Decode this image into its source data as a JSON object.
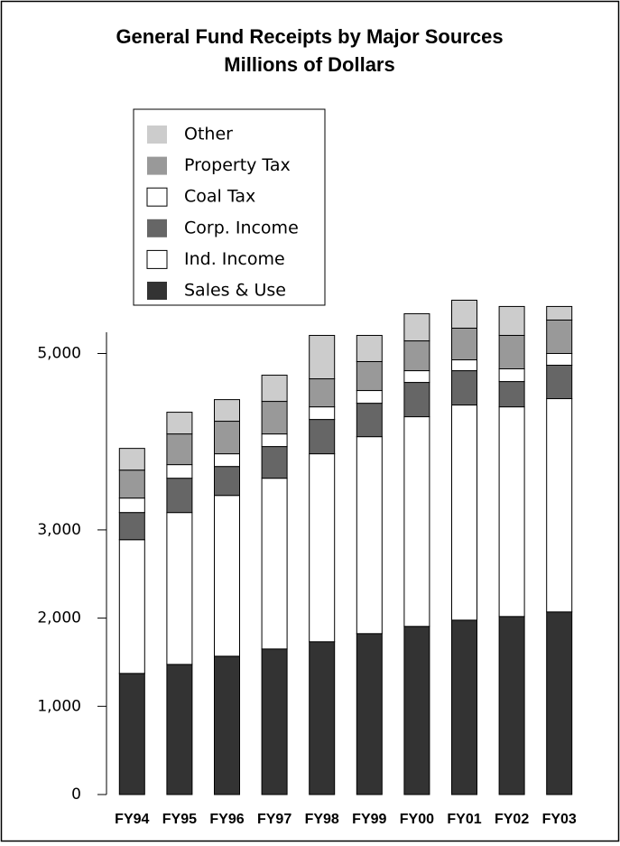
{
  "chart_data": {
    "type": "stacked_bar",
    "title": "General Fund Receipts by Major Sources",
    "subtitle": "Millions of Dollars",
    "categories": [
      "FY94",
      "FY95",
      "FY96",
      "FY97",
      "FY98",
      "FY99",
      "FY00",
      "FY01",
      "FY02",
      "FY03"
    ],
    "series": [
      {
        "name": "Sales & Use",
        "color": "#333333",
        "values": [
          1373,
          1475,
          1568,
          1650,
          1732,
          1824,
          1906,
          1977,
          2018,
          2070
        ]
      },
      {
        "name": "Ind. Income",
        "color": "#ffffff",
        "values": [
          1516,
          1722,
          1823,
          1936,
          2131,
          2233,
          2377,
          2439,
          2377,
          2418
        ]
      },
      {
        "name": "Corp. Income",
        "color": "#666666",
        "values": [
          308,
          389,
          328,
          359,
          389,
          379,
          389,
          389,
          287,
          379
        ]
      },
      {
        "name": "Coal Tax",
        "color": "#ffffff",
        "values": [
          164,
          154,
          144,
          143,
          143,
          144,
          133,
          123,
          144,
          133
        ]
      },
      {
        "name": "Property Tax",
        "color": "#999999",
        "values": [
          317,
          348,
          369,
          369,
          318,
          328,
          338,
          359,
          379,
          379
        ]
      },
      {
        "name": "Other",
        "color": "#cccccc",
        "values": [
          246,
          246,
          245,
          297,
          492,
          297,
          308,
          317,
          328,
          154
        ]
      }
    ],
    "ylim": [
      0,
      5650
    ],
    "yticks": [
      0,
      {
        "value": 1000,
        "label": "1,000"
      },
      {
        "value": 2000,
        "label": "2,000"
      },
      {
        "value": 3000,
        "label": "3,000"
      },
      {
        "value": 5000,
        "label": "5,000"
      }
    ]
  }
}
